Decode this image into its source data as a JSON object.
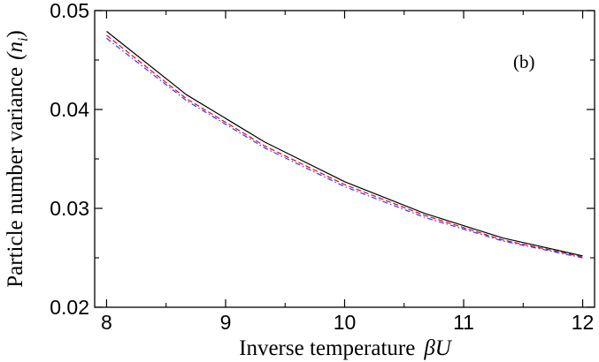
{
  "chart_data": {
    "type": "line",
    "panel_label": "(b)",
    "xlabel_text": "Inverse temperature",
    "xlabel_symbol": "βU",
    "ylabel_text": "Particle number variance",
    "ylabel_symbol": "(n",
    "ylabel_subscript": "i",
    "ylabel_close": ")",
    "xlim": [
      7.9,
      12.1
    ],
    "ylim": [
      0.02,
      0.05
    ],
    "x_ticks": [
      8,
      9,
      10,
      11,
      12
    ],
    "x_tick_labels": [
      "8",
      "9",
      "10",
      "11",
      "12"
    ],
    "y_ticks": [
      0.02,
      0.03,
      0.04,
      0.05
    ],
    "y_tick_labels": [
      "0.02",
      "0.03",
      "0.04",
      "0.05"
    ],
    "grid": false,
    "series": [
      {
        "style": "solid",
        "color": "#000000",
        "x": [
          8,
          8.67,
          9.33,
          10,
          10.67,
          11.33,
          12
        ],
        "y": [
          0.0479,
          0.0415,
          0.0367,
          0.0327,
          0.0295,
          0.027,
          0.0252
        ]
      },
      {
        "style": "dashed",
        "color": "#e8001c",
        "x": [
          8,
          8.67,
          9.33,
          10,
          10.67,
          11.33,
          12
        ],
        "y": [
          0.0475,
          0.0411,
          0.0363,
          0.0324,
          0.0293,
          0.0268,
          0.0251
        ]
      },
      {
        "style": "dash-dot",
        "color": "#2b3cff",
        "x": [
          8,
          8.67,
          9.33,
          10,
          10.67,
          11.33,
          12
        ],
        "y": [
          0.0472,
          0.0409,
          0.0361,
          0.0322,
          0.0291,
          0.0267,
          0.025
        ]
      }
    ]
  }
}
